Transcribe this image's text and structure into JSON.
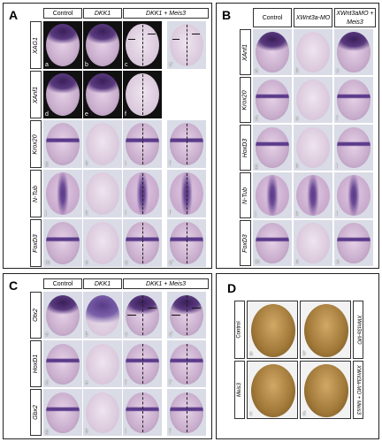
{
  "panels": {
    "A": {
      "label": "A",
      "columns": [
        "Control",
        "DKK1",
        "DKK1 + Meis3"
      ],
      "rows": [
        "XAG1",
        "XAnf1",
        "Krox20",
        "N-Tub",
        "FoxD3"
      ],
      "letters": [
        "a",
        "b",
        "c",
        "c'",
        "d",
        "e",
        "f",
        "g",
        "h",
        "i",
        "i'",
        "j",
        "k",
        "l",
        "l'",
        "m",
        "n",
        "o",
        "o'"
      ]
    },
    "B": {
      "label": "B",
      "columns": [
        "Control",
        "XWnt3a-MO",
        "XWnt3aMO + Meis3"
      ],
      "rows": [
        "XAnf1",
        "Krox20",
        "HoxD3",
        "N-Tub",
        "FoxD3"
      ],
      "letters": [
        "a",
        "b",
        "c",
        "d",
        "e",
        "f",
        "g",
        "h",
        "i",
        "j",
        "k",
        "l",
        "m",
        "n",
        "o"
      ]
    },
    "C": {
      "label": "C",
      "columns": [
        "Control",
        "DKK1",
        "DKK1 + Meis3"
      ],
      "rows": [
        "Otx2",
        "HoxD1",
        "Gbx2"
      ],
      "letters": [
        "a",
        "b",
        "c",
        "c'",
        "d",
        "e",
        "f",
        "f'",
        "g",
        "h",
        "i",
        "i'"
      ]
    },
    "D": {
      "label": "D",
      "left_labels": [
        "Control",
        "Meis3"
      ],
      "right_labels": [
        "XWnt3a-MO",
        "XWnt3a-MO + Meis3"
      ],
      "letters": [
        "a",
        "b",
        "c",
        "d"
      ]
    }
  },
  "colors": {
    "purple_stain": "#5a3a8a",
    "embryo_pink": "#c9b3cf",
    "embryo_brown": "#8a6a3a"
  }
}
